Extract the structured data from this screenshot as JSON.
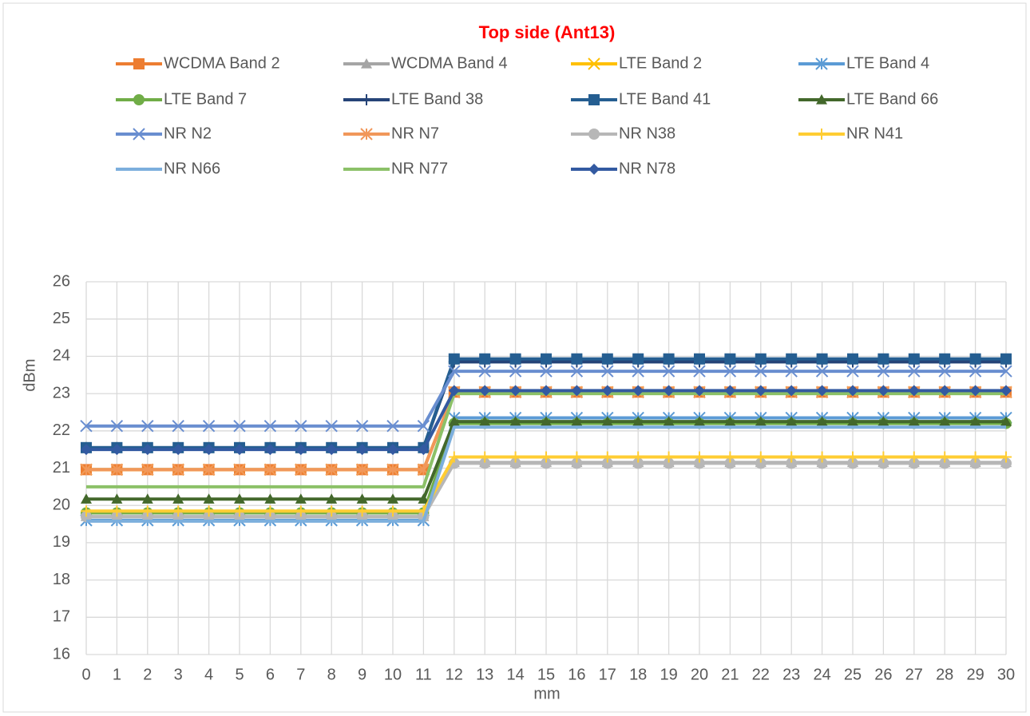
{
  "chart_data": {
    "type": "line",
    "title": "Top side (Ant13)",
    "xlabel": "mm",
    "ylabel": "dBm",
    "categories": [
      "0",
      "1",
      "2",
      "3",
      "4",
      "5",
      "6",
      "7",
      "8",
      "9",
      "10",
      "11",
      "12",
      "13",
      "14",
      "15",
      "16",
      "17",
      "18",
      "19",
      "20",
      "21",
      "22",
      "23",
      "24",
      "25",
      "26",
      "27",
      "28",
      "29",
      "30"
    ],
    "ylim": [
      16,
      26
    ],
    "yticks": [
      16,
      17,
      18,
      19,
      20,
      21,
      22,
      23,
      24,
      25,
      26
    ],
    "grid": true,
    "legend": "top",
    "series": [
      {
        "name": "WCDMA Band 2",
        "color": "#ED7D31",
        "marker": "square",
        "values": [
          20.96,
          20.96,
          20.96,
          20.96,
          20.96,
          20.96,
          20.96,
          20.96,
          20.96,
          20.96,
          20.96,
          20.96,
          23.04,
          23.04,
          23.04,
          23.04,
          23.04,
          23.04,
          23.04,
          23.04,
          23.04,
          23.04,
          23.04,
          23.04,
          23.04,
          23.04,
          23.04,
          23.04,
          23.04,
          23.04,
          23.04
        ]
      },
      {
        "name": "WCDMA Band 4",
        "color": "#A5A5A5",
        "marker": "triangle",
        "values": [
          19.7,
          19.7,
          19.7,
          19.7,
          19.7,
          19.7,
          19.7,
          19.7,
          19.7,
          19.7,
          19.7,
          19.7,
          21.15,
          21.15,
          21.15,
          21.15,
          21.15,
          21.15,
          21.15,
          21.15,
          21.15,
          21.15,
          21.15,
          21.15,
          21.15,
          21.15,
          21.15,
          21.15,
          21.15,
          21.15,
          21.15
        ]
      },
      {
        "name": "LTE Band 2",
        "color": "#FFC000",
        "marker": "x",
        "values": [
          20.96,
          20.96,
          20.96,
          20.96,
          20.96,
          20.96,
          20.96,
          20.96,
          20.96,
          20.96,
          20.96,
          20.96,
          23.04,
          23.04,
          23.04,
          23.04,
          23.04,
          23.04,
          23.04,
          23.04,
          23.04,
          23.04,
          23.04,
          23.04,
          23.04,
          23.04,
          23.04,
          23.04,
          23.04,
          23.04,
          23.04
        ]
      },
      {
        "name": "LTE Band 4",
        "color": "#5B9BD5",
        "marker": "asterisk",
        "values": [
          19.6,
          19.6,
          19.6,
          19.6,
          19.6,
          19.6,
          19.6,
          19.6,
          19.6,
          19.6,
          19.6,
          19.6,
          22.35,
          22.35,
          22.35,
          22.35,
          22.35,
          22.35,
          22.35,
          22.35,
          22.35,
          22.35,
          22.35,
          22.35,
          22.35,
          22.35,
          22.35,
          22.35,
          22.35,
          22.35,
          22.35
        ]
      },
      {
        "name": "LTE Band 7",
        "color": "#70AD47",
        "marker": "circle",
        "values": [
          19.8,
          19.8,
          19.8,
          19.8,
          19.8,
          19.8,
          19.8,
          19.8,
          19.8,
          19.8,
          19.8,
          19.8,
          22.2,
          22.2,
          22.2,
          22.2,
          22.2,
          22.2,
          22.2,
          22.2,
          22.2,
          22.2,
          22.2,
          22.2,
          22.2,
          22.2,
          22.2,
          22.2,
          22.2,
          22.2,
          22.2
        ]
      },
      {
        "name": "LTE Band 38",
        "color": "#264478",
        "marker": "plus",
        "values": [
          21.55,
          21.55,
          21.55,
          21.55,
          21.55,
          21.55,
          21.55,
          21.55,
          21.55,
          21.55,
          21.55,
          21.55,
          23.85,
          23.85,
          23.85,
          23.85,
          23.85,
          23.85,
          23.85,
          23.85,
          23.85,
          23.85,
          23.85,
          23.85,
          23.85,
          23.85,
          23.85,
          23.85,
          23.85,
          23.85,
          23.85
        ]
      },
      {
        "name": "LTE Band 41",
        "color": "#255E91",
        "marker": "square",
        "values": [
          21.55,
          21.55,
          21.55,
          21.55,
          21.55,
          21.55,
          21.55,
          21.55,
          21.55,
          21.55,
          21.55,
          21.55,
          23.93,
          23.93,
          23.93,
          23.93,
          23.93,
          23.93,
          23.93,
          23.93,
          23.93,
          23.93,
          23.93,
          23.93,
          23.93,
          23.93,
          23.93,
          23.93,
          23.93,
          23.93,
          23.93
        ]
      },
      {
        "name": "LTE Band 66",
        "color": "#43682B",
        "marker": "triangle",
        "values": [
          20.17,
          20.17,
          20.17,
          20.17,
          20.17,
          20.17,
          20.17,
          20.17,
          20.17,
          20.17,
          20.17,
          20.17,
          22.25,
          22.25,
          22.25,
          22.25,
          22.25,
          22.25,
          22.25,
          22.25,
          22.25,
          22.25,
          22.25,
          22.25,
          22.25,
          22.25,
          22.25,
          22.25,
          22.25,
          22.25,
          22.25
        ]
      },
      {
        "name": "NR N2",
        "color": "#698ED0",
        "marker": "x",
        "values": [
          22.13,
          22.13,
          22.13,
          22.13,
          22.13,
          22.13,
          22.13,
          22.13,
          22.13,
          22.13,
          22.13,
          22.13,
          23.6,
          23.6,
          23.6,
          23.6,
          23.6,
          23.6,
          23.6,
          23.6,
          23.6,
          23.6,
          23.6,
          23.6,
          23.6,
          23.6,
          23.6,
          23.6,
          23.6,
          23.6,
          23.6
        ]
      },
      {
        "name": "NR N7",
        "color": "#F1975A",
        "marker": "asterisk",
        "values": [
          20.96,
          20.96,
          20.96,
          20.96,
          20.96,
          20.96,
          20.96,
          20.96,
          20.96,
          20.96,
          20.96,
          20.96,
          23.04,
          23.04,
          23.04,
          23.04,
          23.04,
          23.04,
          23.04,
          23.04,
          23.04,
          23.04,
          23.04,
          23.04,
          23.04,
          23.04,
          23.04,
          23.04,
          23.04,
          23.04,
          23.04
        ]
      },
      {
        "name": "NR N38",
        "color": "#B7B7B7",
        "marker": "circle",
        "values": [
          19.7,
          19.7,
          19.7,
          19.7,
          19.7,
          19.7,
          19.7,
          19.7,
          19.7,
          19.7,
          19.7,
          19.7,
          21.13,
          21.13,
          21.13,
          21.13,
          21.13,
          21.13,
          21.13,
          21.13,
          21.13,
          21.13,
          21.13,
          21.13,
          21.13,
          21.13,
          21.13,
          21.13,
          21.13,
          21.13,
          21.13
        ]
      },
      {
        "name": "NR N41",
        "color": "#FFCD33",
        "marker": "plus",
        "values": [
          19.85,
          19.85,
          19.85,
          19.85,
          19.85,
          19.85,
          19.85,
          19.85,
          19.85,
          19.85,
          19.85,
          19.85,
          21.3,
          21.3,
          21.3,
          21.3,
          21.3,
          21.3,
          21.3,
          21.3,
          21.3,
          21.3,
          21.3,
          21.3,
          21.3,
          21.3,
          21.3,
          21.3,
          21.3,
          21.3,
          21.3
        ]
      },
      {
        "name": "NR N66",
        "color": "#7CAFDD",
        "marker": "none",
        "values": [
          19.58,
          19.58,
          19.58,
          19.58,
          19.58,
          19.58,
          19.58,
          19.58,
          19.58,
          19.58,
          19.58,
          19.58,
          22.1,
          22.1,
          22.1,
          22.1,
          22.1,
          22.1,
          22.1,
          22.1,
          22.1,
          22.1,
          22.1,
          22.1,
          22.1,
          22.1,
          22.1,
          22.1,
          22.1,
          22.1,
          22.1
        ]
      },
      {
        "name": "NR N77",
        "color": "#8CC168",
        "marker": "none",
        "values": [
          20.5,
          20.5,
          20.5,
          20.5,
          20.5,
          20.5,
          20.5,
          20.5,
          20.5,
          20.5,
          20.5,
          20.5,
          23.0,
          23.0,
          23.0,
          23.0,
          23.0,
          23.0,
          23.0,
          23.0,
          23.0,
          23.0,
          23.0,
          23.0,
          23.0,
          23.0,
          23.0,
          23.0,
          23.0,
          23.0,
          23.0
        ]
      },
      {
        "name": "NR N78",
        "color": "#335AA1",
        "marker": "diamond",
        "values": [
          21.5,
          21.5,
          21.5,
          21.5,
          21.5,
          21.5,
          21.5,
          21.5,
          21.5,
          21.5,
          21.5,
          21.5,
          23.08,
          23.08,
          23.08,
          23.08,
          23.08,
          23.08,
          23.08,
          23.08,
          23.08,
          23.08,
          23.08,
          23.08,
          23.08,
          23.08,
          23.08,
          23.08,
          23.08,
          23.08,
          23.08
        ]
      }
    ]
  }
}
